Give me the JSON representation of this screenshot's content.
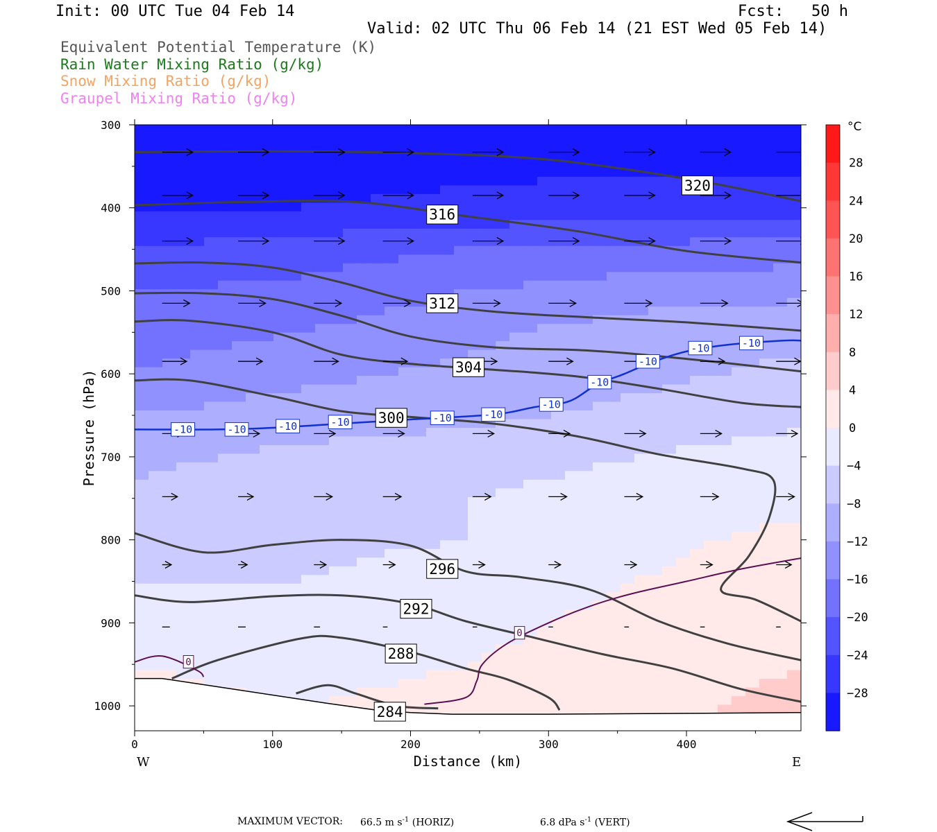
{
  "header": {
    "init": "Init: 00 UTC Tue 04 Feb 14",
    "fcst": "Fcst:   50 h",
    "valid": "Valid: 02 UTC Thu 06 Feb 14 (21 EST Wed 05 Feb 14)"
  },
  "legend": [
    {
      "text": "Equivalent Potential Temperature (K)",
      "color": "#555555"
    },
    {
      "text": "Rain Water Mixing Ratio (g/kg)",
      "color": "#1a7a1a"
    },
    {
      "text": "Snow Mixing Ratio (g/kg)",
      "color": "#f4a460"
    },
    {
      "text": "Graupel Mixing Ratio (g/kg)",
      "color": "#ee82ee"
    }
  ],
  "footer": {
    "max_vector_label": "MAXIMUM VECTOR:",
    "horiz": "66.5 m s",
    "horiz_unit": "-1",
    "horiz_tag": "(HORIZ)",
    "vert": "6.8 dPa s",
    "vert_unit": "-1",
    "vert_tag": "(VERT)"
  },
  "chart_data": {
    "type": "cross-section",
    "xlabel": "Distance (km)",
    "ylabel": "Pressure (hPa)",
    "xlim": [
      0,
      483
    ],
    "ylim": [
      1030,
      300
    ],
    "x_ticks": [
      0,
      100,
      200,
      300,
      400
    ],
    "y_ticks": [
      300,
      400,
      500,
      600,
      700,
      800,
      900,
      1000
    ],
    "x_end_labels": {
      "left": "W",
      "right": "E"
    },
    "colorbar": {
      "unit": "°C",
      "range": [
        -32,
        32
      ],
      "tick_labels": [
        28,
        24,
        20,
        16,
        12,
        8,
        4,
        0,
        -4,
        -8,
        -12,
        -16,
        -20,
        -24,
        -28
      ]
    },
    "temperature_field_rows": [
      {
        "p": 300,
        "t": [
          -31,
          -31,
          -31,
          -31,
          -31
        ]
      },
      {
        "p": 400,
        "t": [
          -28,
          -28,
          -27,
          -26,
          -26
        ]
      },
      {
        "p": 450,
        "t": [
          -24,
          -22,
          -20,
          -19,
          -18
        ]
      },
      {
        "p": 500,
        "t": [
          -20,
          -19,
          -16,
          -14,
          -13
        ]
      },
      {
        "p": 550,
        "t": [
          -18,
          -16,
          -13,
          -10,
          -9
        ]
      },
      {
        "p": 600,
        "t": [
          -16,
          -13,
          -11,
          -9,
          -7
        ]
      },
      {
        "p": 650,
        "t": [
          -12,
          -10,
          -9,
          -7,
          -5
        ]
      },
      {
        "p": 700,
        "t": [
          -9,
          -7,
          -6,
          -4,
          -2
        ]
      },
      {
        "p": 750,
        "t": [
          -7,
          -5,
          -4,
          -2,
          -1
        ]
      },
      {
        "p": 800,
        "t": [
          -5,
          -5,
          -4,
          -1,
          1
        ]
      },
      {
        "p": 850,
        "t": [
          -4,
          -4,
          -2,
          0,
          2
        ]
      },
      {
        "p": 900,
        "t": [
          -2,
          -3,
          -1,
          1,
          3
        ]
      },
      {
        "p": 950,
        "t": [
          0,
          -1,
          0,
          2,
          4
        ]
      },
      {
        "p": 1000,
        "t": [
          1,
          0,
          1,
          3,
          5
        ]
      }
    ],
    "theta_e_contours": [
      {
        "label": "320",
        "label_at": [
          408,
          373
        ],
        "points": [
          [
            0,
            333
          ],
          [
            100,
            332
          ],
          [
            200,
            334
          ],
          [
            300,
            342
          ],
          [
            400,
            365
          ],
          [
            483,
            392
          ]
        ]
      },
      {
        "label": "316",
        "label_at": [
          223,
          408
        ],
        "points": [
          [
            0,
            397
          ],
          [
            80,
            393
          ],
          [
            160,
            393
          ],
          [
            240,
            410
          ],
          [
            320,
            428
          ],
          [
            400,
            452
          ],
          [
            483,
            466
          ]
        ]
      },
      {
        "label": "312",
        "label_at": [
          223,
          515
        ],
        "points": [
          [
            0,
            467
          ],
          [
            50,
            466
          ],
          [
            100,
            472
          ],
          [
            150,
            490
          ],
          [
            200,
            512
          ],
          [
            260,
            525
          ],
          [
            330,
            532
          ],
          [
            400,
            538
          ],
          [
            483,
            548
          ]
        ]
      },
      {
        "label": "",
        "label_at": null,
        "points": [
          [
            0,
            503
          ],
          [
            50,
            503
          ],
          [
            100,
            510
          ],
          [
            150,
            530
          ],
          [
            200,
            555
          ],
          [
            260,
            568
          ],
          [
            330,
            572
          ],
          [
            400,
            582
          ],
          [
            483,
            597
          ]
        ]
      },
      {
        "label": "304",
        "label_at": [
          242,
          592
        ],
        "points": [
          [
            0,
            537
          ],
          [
            40,
            536
          ],
          [
            100,
            550
          ],
          [
            150,
            577
          ],
          [
            200,
            588
          ],
          [
            260,
            595
          ],
          [
            320,
            603
          ],
          [
            380,
            618
          ],
          [
            440,
            635
          ],
          [
            483,
            640
          ]
        ]
      },
      {
        "label": "300",
        "label_at": [
          186,
          653
        ],
        "points": [
          [
            0,
            608
          ],
          [
            40,
            608
          ],
          [
            100,
            627
          ],
          [
            150,
            645
          ],
          [
            200,
            652
          ],
          [
            260,
            660
          ],
          [
            320,
            675
          ],
          [
            380,
            697
          ],
          [
            440,
            714
          ],
          [
            463,
            728
          ],
          [
            460,
            773
          ],
          [
            445,
            820
          ],
          [
            425,
            860
          ],
          [
            450,
            872
          ],
          [
            483,
            898
          ]
        ]
      },
      {
        "label": "296",
        "label_at": [
          223,
          835
        ],
        "points": [
          [
            0,
            792
          ],
          [
            50,
            815
          ],
          [
            100,
            806
          ],
          [
            150,
            800
          ],
          [
            200,
            807
          ],
          [
            240,
            838
          ],
          [
            280,
            845
          ],
          [
            330,
            860
          ],
          [
            380,
            898
          ],
          [
            430,
            925
          ],
          [
            483,
            945
          ]
        ]
      },
      {
        "label": "292",
        "label_at": [
          204,
          883
        ],
        "points": [
          [
            0,
            867
          ],
          [
            40,
            875
          ],
          [
            100,
            868
          ],
          [
            150,
            867
          ],
          [
            200,
            877
          ],
          [
            240,
            898
          ],
          [
            290,
            918
          ],
          [
            340,
            938
          ],
          [
            390,
            955
          ],
          [
            440,
            980
          ],
          [
            483,
            995
          ]
        ]
      },
      {
        "label": "288",
        "label_at": [
          193,
          937
        ],
        "points": [
          [
            27,
            967
          ],
          [
            60,
            945
          ],
          [
            120,
            919
          ],
          [
            150,
            918
          ],
          [
            200,
            935
          ],
          [
            240,
            955
          ],
          [
            270,
            968
          ],
          [
            300,
            990
          ],
          [
            308,
            1005
          ]
        ]
      },
      {
        "label": "284",
        "label_at": [
          185,
          1007
        ],
        "points": [
          [
            117,
            985
          ],
          [
            140,
            975
          ],
          [
            160,
            985
          ],
          [
            190,
            1000
          ],
          [
            220,
            1003
          ]
        ]
      }
    ],
    "isotherm_minus10": {
      "label": "-10",
      "label_positions": [
        [
          35,
          667
        ],
        [
          74,
          667
        ],
        [
          111,
          663
        ],
        [
          149,
          658
        ],
        [
          223,
          653
        ],
        [
          260,
          649
        ],
        [
          302,
          637
        ],
        [
          337,
          610
        ],
        [
          372,
          585
        ],
        [
          410,
          569
        ],
        [
          447,
          563
        ]
      ],
      "points": [
        [
          0,
          667
        ],
        [
          60,
          667
        ],
        [
          100,
          665
        ],
        [
          150,
          660
        ],
        [
          200,
          655
        ],
        [
          260,
          649
        ],
        [
          290,
          640
        ],
        [
          315,
          633
        ],
        [
          335,
          613
        ],
        [
          355,
          600
        ],
        [
          375,
          586
        ],
        [
          400,
          573
        ],
        [
          430,
          565
        ],
        [
          470,
          560
        ],
        [
          483,
          560
        ]
      ]
    },
    "isotherm_zero": {
      "label": "0",
      "label_positions": [
        [
          39,
          947
        ],
        [
          279,
          912
        ]
      ],
      "points": [
        [
          0,
          947
        ],
        [
          20,
          940
        ],
        [
          45,
          957
        ],
        [
          50,
          965
        ]
      ],
      "points2": [
        [
          210,
          998
        ],
        [
          240,
          990
        ],
        [
          248,
          970
        ],
        [
          252,
          950
        ],
        [
          270,
          925
        ],
        [
          300,
          900
        ],
        [
          330,
          880
        ],
        [
          360,
          865
        ],
        [
          400,
          850
        ],
        [
          440,
          835
        ],
        [
          483,
          822
        ]
      ]
    },
    "terrain": [
      [
        0,
        967
      ],
      [
        20,
        967
      ],
      [
        60,
        977
      ],
      [
        100,
        987
      ],
      [
        140,
        997
      ],
      [
        175,
        1005
      ],
      [
        200,
        1008
      ],
      [
        230,
        1010
      ],
      [
        300,
        1010
      ],
      [
        400,
        1009
      ],
      [
        483,
        1008
      ]
    ],
    "wind_rows": [
      {
        "p": 333,
        "xs": [
          25,
          80,
          135,
          185,
          250,
          305,
          360,
          415,
          470
        ],
        "len": [
          20,
          20,
          20,
          20,
          20,
          20,
          20,
          20,
          20
        ]
      },
      {
        "p": 385,
        "xs": [
          25,
          80,
          135,
          185,
          250,
          305,
          360,
          415,
          470
        ],
        "len": [
          20,
          20,
          20,
          20,
          20,
          20,
          20,
          20,
          20
        ]
      },
      {
        "p": 440,
        "xs": [
          25,
          80,
          135,
          185,
          250,
          305,
          360,
          415,
          470
        ],
        "len": [
          20,
          20,
          20,
          20,
          20,
          20,
          20,
          20,
          20
        ]
      },
      {
        "p": 515,
        "xs": [
          25,
          80,
          135,
          185,
          250,
          305,
          360,
          415,
          470
        ],
        "len": [
          18,
          18,
          18,
          18,
          18,
          18,
          18,
          18,
          18
        ]
      },
      {
        "p": 585,
        "xs": [
          25,
          80,
          135,
          185,
          250,
          305,
          360,
          415,
          470
        ],
        "len": [
          16,
          16,
          16,
          16,
          16,
          16,
          16,
          16,
          16
        ]
      },
      {
        "p": 672,
        "xs": [
          25,
          80,
          135,
          185,
          250,
          305,
          360,
          415,
          470
        ],
        "len": [
          14,
          14,
          14,
          14,
          14,
          14,
          14,
          14,
          14
        ]
      },
      {
        "p": 748,
        "xs": [
          25,
          80,
          135,
          185,
          250,
          305,
          360,
          415,
          470
        ],
        "len": [
          10,
          10,
          12,
          12,
          12,
          12,
          12,
          12,
          12
        ]
      },
      {
        "p": 830,
        "xs": [
          25,
          80,
          135,
          185,
          250,
          305,
          360,
          415,
          470
        ],
        "len": [
          6,
          6,
          8,
          8,
          8,
          8,
          8,
          8,
          10
        ]
      },
      {
        "p": 905,
        "xs": [
          25,
          80,
          135,
          185,
          250,
          305,
          360,
          415,
          470
        ],
        "len": [
          5,
          5,
          4,
          3,
          3,
          3,
          3,
          3,
          3
        ]
      }
    ]
  }
}
